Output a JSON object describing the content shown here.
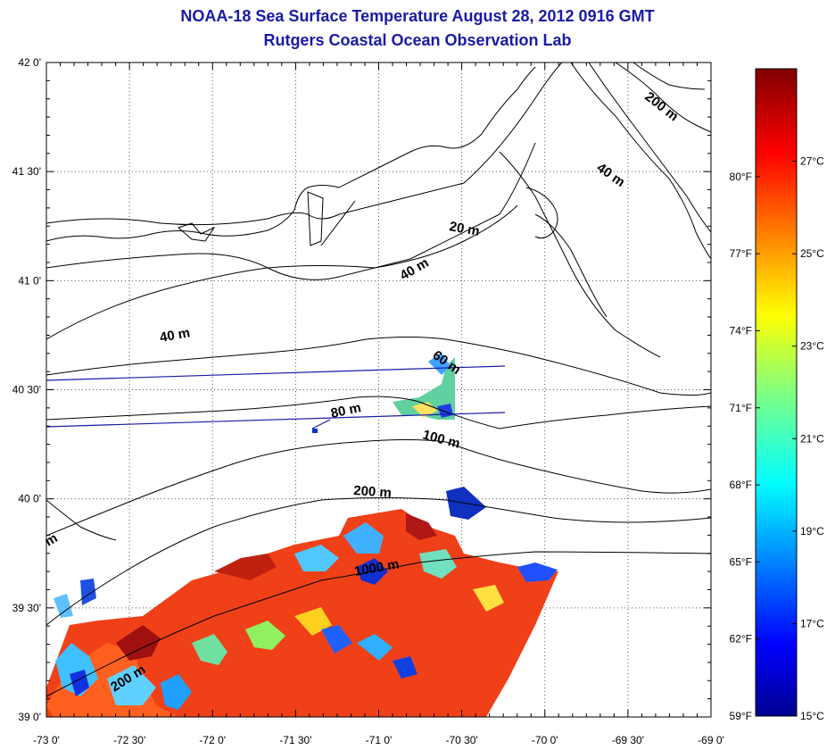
{
  "title": "NOAA-18 Sea Surface Temperature August 28, 2012 0916 GMT",
  "subtitle": "Rutgers Coastal Ocean Observation Lab",
  "map": {
    "lon_range": [
      -73.0,
      -69.0
    ],
    "lat_range": [
      39.0,
      42.0
    ],
    "lat_ticks": [
      "42 0'",
      "41 30'",
      "41 0'",
      "40 30'",
      "40 0'",
      "39 30'",
      "39 0'"
    ],
    "lon_ticks": [
      "-73 0'",
      "-72 30'",
      "-72 0'",
      "-71 30'",
      "-71 0'",
      "-70 30'",
      "-70 0'",
      "-69 30'",
      "-69 0'"
    ],
    "grid": "dotted",
    "contour_labels": [
      "200 m",
      "40 m",
      "20 m",
      "40 m",
      "40 m",
      "60 m",
      "80 m",
      "100 m",
      "200 m",
      "1000 m",
      "200 m",
      "m"
    ]
  },
  "colorbar": {
    "range_c": [
      15,
      29
    ],
    "fahrenheit_labels": [
      "80°F",
      "77°F",
      "74°F",
      "71°F",
      "68°F",
      "65°F",
      "62°F",
      "59°F"
    ],
    "celsius_labels": [
      "27°C",
      "25°C",
      "23°C",
      "21°C",
      "19°C",
      "17°C",
      "15°C"
    ]
  }
}
